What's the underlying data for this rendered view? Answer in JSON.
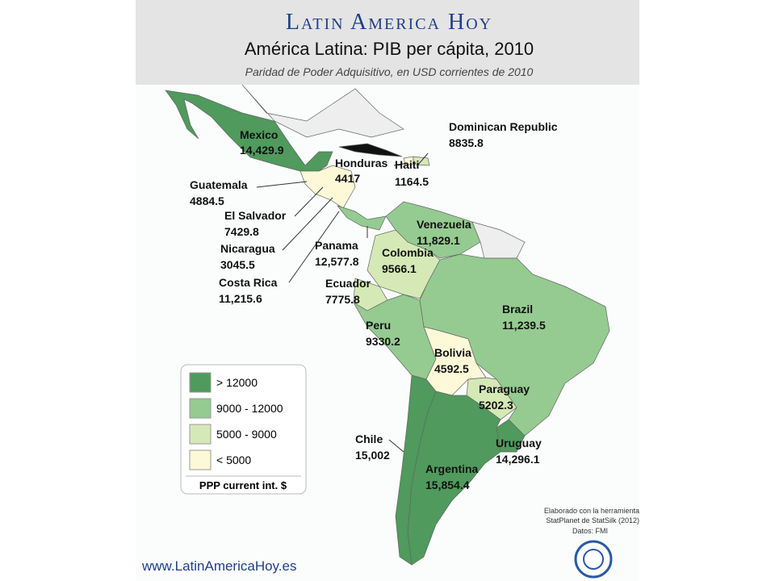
{
  "header": {
    "brand": "Latin America Hoy",
    "title": "América Latina: PIB per cápita, 2010",
    "subtitle": "Paridad de Poder Adquisitivo, en USD corrientes de 2010"
  },
  "countries": [
    {
      "name": "Mexico",
      "value": "14,429.9"
    },
    {
      "name": "Dominican Republic",
      "value": "8835.8"
    },
    {
      "name": "Honduras",
      "value": "4417"
    },
    {
      "name": "Haiti",
      "value": "1164.5"
    },
    {
      "name": "Guatemala",
      "value": "4884.5"
    },
    {
      "name": "El Salvador",
      "value": "7429.8"
    },
    {
      "name": "Nicaragua",
      "value": "3045.5"
    },
    {
      "name": "Costa Rica",
      "value": "11,215.6"
    },
    {
      "name": "Panama",
      "value": "12,577.8"
    },
    {
      "name": "Venezuela",
      "value": "11,829.1"
    },
    {
      "name": "Colombia",
      "value": "9566.1"
    },
    {
      "name": "Ecuador",
      "value": "7775.8"
    },
    {
      "name": "Brazil",
      "value": "11,239.5"
    },
    {
      "name": "Peru",
      "value": "9330.2"
    },
    {
      "name": "Bolivia",
      "value": "4592.5"
    },
    {
      "name": "Paraguay",
      "value": "5202.3"
    },
    {
      "name": "Chile",
      "value": "15,002"
    },
    {
      "name": "Uruguay",
      "value": "14,296.1"
    },
    {
      "name": "Argentina",
      "value": "15,854.4"
    }
  ],
  "legend": {
    "items": [
      {
        "label": "> 12000",
        "color": "#4f9a5c"
      },
      {
        "label": "9000 - 12000",
        "color": "#95cb91"
      },
      {
        "label": "5000 - 9000",
        "color": "#d5e9b6"
      },
      {
        "label": "< 5000",
        "color": "#fdf9d8"
      }
    ],
    "title": "PPP current int. $"
  },
  "credits": [
    "Elaborado con la herramienta",
    "StatPlanet de StatSilk (2012)",
    "Datos: FMI"
  ],
  "footer": "www.LatinAmericaHoy.es"
}
